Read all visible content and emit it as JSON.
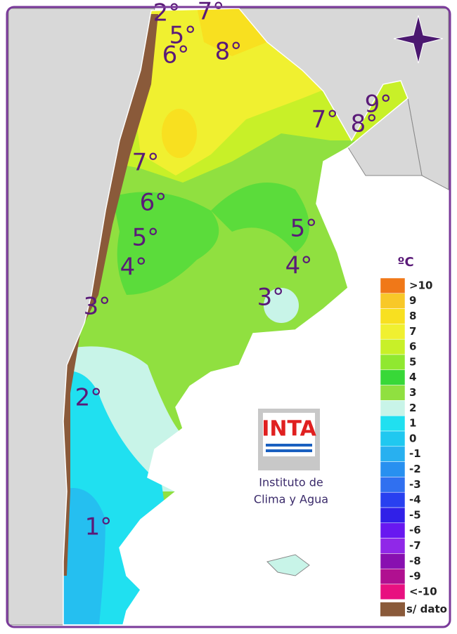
{
  "map": {
    "contour_labels": [
      "2°",
      "7°",
      "5°",
      "6°",
      "8°",
      "9°",
      "8°",
      "7°",
      "7°",
      "6°",
      "5°",
      "5°",
      "4°",
      "4°",
      "3°",
      "3°",
      "2°",
      "1°"
    ],
    "legend": {
      "unit": "ºC",
      "items": [
        {
          "label": ">10",
          "color": "#f07818"
        },
        {
          "label": "9",
          "color": "#f8c828"
        },
        {
          "label": "8",
          "color": "#f8e020"
        },
        {
          "label": "7",
          "color": "#f0f030"
        },
        {
          "label": "6",
          "color": "#c8f028"
        },
        {
          "label": "5",
          "color": "#90e830"
        },
        {
          "label": "4",
          "color": "#38d838"
        },
        {
          "label": "3",
          "color": "#90e040"
        },
        {
          "label": "2",
          "color": "#c8f4e8"
        },
        {
          "label": "1",
          "color": "#20e0f0"
        },
        {
          "label": "0",
          "color": "#20c8f0"
        },
        {
          "label": "-1",
          "color": "#28b0f0"
        },
        {
          "label": "-2",
          "color": "#2890f0"
        },
        {
          "label": "-3",
          "color": "#3070f0"
        },
        {
          "label": "-4",
          "color": "#2840f0"
        },
        {
          "label": "-5",
          "color": "#3020e8"
        },
        {
          "label": "-6",
          "color": "#6818f0"
        },
        {
          "label": "-7",
          "color": "#9028e8"
        },
        {
          "label": "-8",
          "color": "#8810b0"
        },
        {
          "label": "-9",
          "color": "#b01090"
        },
        {
          "label": "<-10",
          "color": "#e81080"
        }
      ],
      "no_data": "s/ dato"
    },
    "logo": {
      "name": "INTA",
      "caption_line1": "Instituto de",
      "caption_line2": "Clima y Agua"
    }
  }
}
